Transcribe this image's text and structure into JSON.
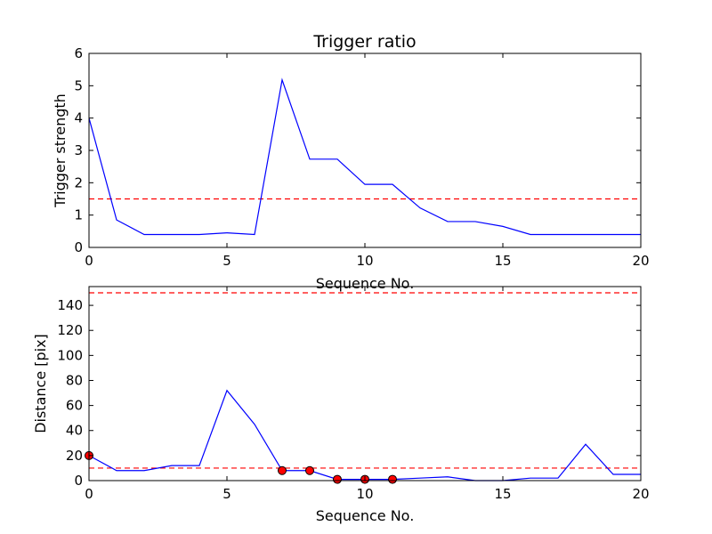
{
  "colors": {
    "series": "#0000ff",
    "threshold": "#ff0000",
    "marker_fill": "#ff0000",
    "marker_edge": "#000000",
    "axes": "#000000",
    "background": "#ffffff"
  },
  "chart_data": [
    {
      "type": "line",
      "title": "Trigger ratio",
      "xlabel": "Sequence No.",
      "ylabel": "Trigger strength",
      "xlim": [
        0,
        20
      ],
      "ylim": [
        0,
        6
      ],
      "xticks": [
        0,
        5,
        10,
        15,
        20
      ],
      "yticks": [
        0,
        1,
        2,
        3,
        4,
        5,
        6
      ],
      "grid": false,
      "series": [
        {
          "x": [
            0,
            1,
            2,
            3,
            4,
            5,
            6,
            7,
            8,
            9,
            10,
            11,
            12,
            13,
            14,
            15,
            16,
            17,
            18,
            19,
            20
          ],
          "y": [
            4.0,
            0.85,
            0.4,
            0.4,
            0.4,
            0.45,
            0.4,
            5.18,
            2.73,
            2.73,
            1.95,
            1.95,
            1.22,
            0.8,
            0.8,
            0.65,
            0.4,
            0.4,
            0.4,
            0.4,
            0.4
          ]
        }
      ],
      "hlines": [
        {
          "y": 1.5,
          "style": "dashed"
        }
      ]
    },
    {
      "type": "line",
      "title": "",
      "xlabel": "Sequence No.",
      "ylabel": "Distance [pix]",
      "xlim": [
        0,
        20
      ],
      "ylim": [
        0,
        155
      ],
      "xticks": [
        0,
        5,
        10,
        15,
        20
      ],
      "yticks": [
        0,
        20,
        40,
        60,
        80,
        100,
        120,
        140
      ],
      "grid": false,
      "series": [
        {
          "x": [
            0,
            1,
            2,
            3,
            4,
            5,
            6,
            7,
            8,
            9,
            10,
            11,
            12,
            13,
            14,
            15,
            16,
            17,
            18,
            19,
            20
          ],
          "y": [
            20,
            8,
            8,
            12,
            12,
            72,
            45,
            8,
            8,
            1,
            1,
            1,
            2,
            3,
            0,
            0,
            2,
            2,
            29,
            5,
            5
          ]
        }
      ],
      "markers": {
        "x": [
          0,
          7,
          8,
          9,
          10,
          11
        ],
        "y": [
          20,
          8,
          8,
          1,
          1,
          1
        ]
      },
      "hlines": [
        {
          "y": 10,
          "style": "dashed"
        },
        {
          "y": 150,
          "style": "dashed"
        }
      ]
    }
  ]
}
